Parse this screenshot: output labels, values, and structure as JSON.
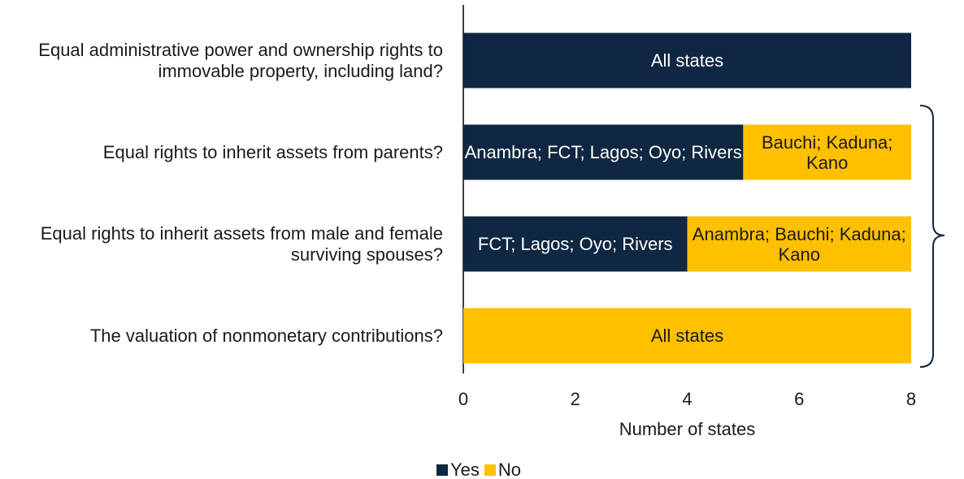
{
  "chart_data": {
    "type": "stacked_barh",
    "categories": [
      "Equal administrative power and ownership rights to immovable property, including land?",
      "Equal rights to inherit assets from parents?",
      "Equal rights to inherit assets from male and female surviving spouses?",
      "The valuation of nonmonetary contributions?"
    ],
    "series": [
      {
        "name": "Yes",
        "color": "#0f2742",
        "text_color": "#ffffff",
        "values": [
          8,
          5,
          4,
          0
        ],
        "labels": [
          "All states",
          "Anambra; FCT; Lagos; Oyo; Rivers",
          "FCT; Lagos; Oyo; Rivers",
          null
        ]
      },
      {
        "name": "No",
        "color": "#ffc000",
        "text_color": "#1a1a1a",
        "values": [
          0,
          3,
          4,
          8
        ],
        "labels": [
          null,
          "Bauchi; Kaduna; Kano",
          "Anambra; Bauchi; Kaduna; Kano",
          "All states"
        ]
      }
    ],
    "xlabel": "Number of states",
    "xlim": [
      0,
      8
    ],
    "xticks": [
      0,
      2,
      4,
      6,
      8
    ],
    "grid": false,
    "legend": "bottom"
  }
}
